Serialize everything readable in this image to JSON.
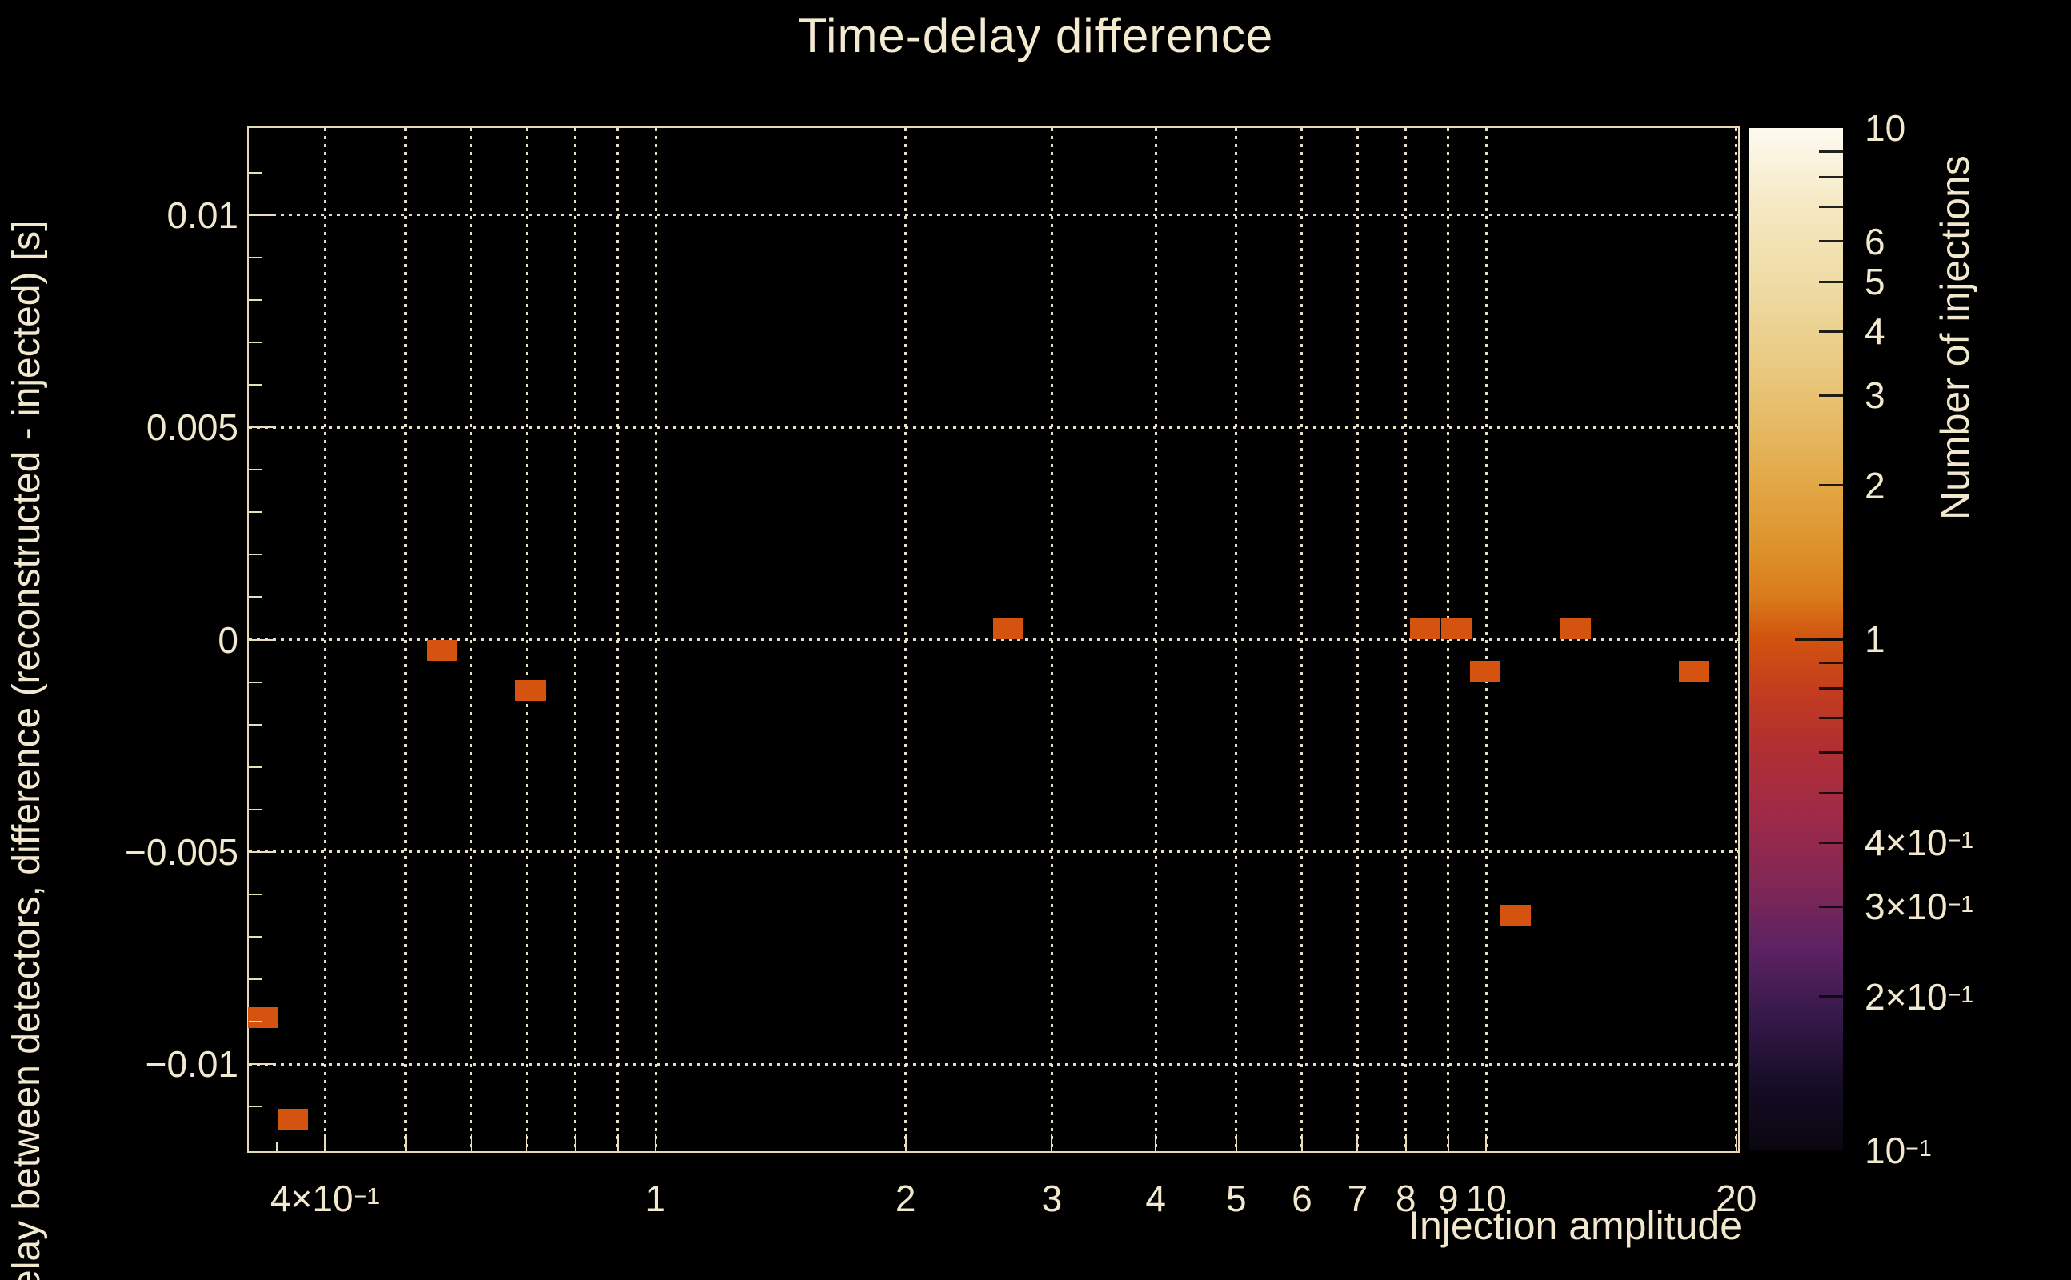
{
  "page": {
    "background": "#000000",
    "text_color": "#f2e8cd"
  },
  "chart_data": {
    "type": "heatmap",
    "title": "Time-delay difference",
    "xlabel": "Injection amplitude",
    "ylabel": "elay between detectors, difference (reconstructed - injected) [s]",
    "zlabel": "Number of injections",
    "x_scale": "log",
    "z_scale": "log",
    "grid": true,
    "xlim": [
      0.324,
      20.1
    ],
    "ylim": [
      -0.01205,
      0.01205
    ],
    "zlim": [
      0.1,
      10
    ],
    "x_tick_labels": [
      {
        "v": 0.4,
        "t": "4×10",
        "s": "−1"
      },
      {
        "v": 1,
        "t": "1"
      },
      {
        "v": 2,
        "t": "2"
      },
      {
        "v": 3,
        "t": "3"
      },
      {
        "v": 4,
        "t": "4"
      },
      {
        "v": 5,
        "t": "5"
      },
      {
        "v": 6,
        "t": "6"
      },
      {
        "v": 7,
        "t": "7"
      },
      {
        "v": 8,
        "t": "8"
      },
      {
        "v": 9,
        "t": "9"
      },
      {
        "v": 10,
        "t": "10"
      },
      {
        "v": 20,
        "t": "20"
      }
    ],
    "x_gridlines": [
      0.4,
      0.5,
      0.6,
      0.7,
      0.8,
      0.9,
      1,
      2,
      3,
      4,
      5,
      6,
      7,
      8,
      9,
      10,
      20
    ],
    "x_minor_ticks": [
      0.35
    ],
    "y_tick_labels": [
      {
        "v": 0.01,
        "t": "0.01"
      },
      {
        "v": 0.005,
        "t": "0.005"
      },
      {
        "v": 0,
        "t": "0"
      },
      {
        "v": -0.005,
        "t": "−0.005"
      },
      {
        "v": -0.01,
        "t": "−0.01"
      }
    ],
    "y_minor_step": 0.001,
    "bin_width_decades": 0.0366,
    "bin_height": 0.0005,
    "marker_color": "#d4530f",
    "bins": [
      {
        "x": 0.337,
        "y": -0.0089,
        "n": 1
      },
      {
        "x": 0.366,
        "y": -0.0113,
        "n": 1
      },
      {
        "x": 0.553,
        "y": -0.00025,
        "n": 1
      },
      {
        "x": 0.707,
        "y": -0.0012,
        "n": 1
      },
      {
        "x": 2.66,
        "y": 0.00025,
        "n": 1
      },
      {
        "x": 8.45,
        "y": 0.00025,
        "n": 1
      },
      {
        "x": 9.2,
        "y": 0.00025,
        "n": 1
      },
      {
        "x": 9.98,
        "y": -0.00075,
        "n": 1
      },
      {
        "x": 10.85,
        "y": -0.0065,
        "n": 1
      },
      {
        "x": 12.8,
        "y": 0.00025,
        "n": 1
      },
      {
        "x": 17.8,
        "y": -0.00075,
        "n": 1
      }
    ],
    "colorbar": {
      "tick_values": [
        9,
        8,
        7,
        6,
        5,
        4,
        3,
        2,
        1,
        0.9,
        0.8,
        0.7,
        0.6,
        0.5,
        0.4,
        0.3,
        0.2
      ],
      "major_tick_values": [
        1
      ],
      "labels": [
        {
          "v": 10,
          "t": "10"
        },
        {
          "v": 6,
          "t": "6"
        },
        {
          "v": 5,
          "t": "5"
        },
        {
          "v": 4,
          "t": "4"
        },
        {
          "v": 3,
          "t": "3"
        },
        {
          "v": 2,
          "t": "2"
        },
        {
          "v": 1,
          "t": "1"
        },
        {
          "v": 0.4,
          "t": "4×10",
          "s": "−1"
        },
        {
          "v": 0.3,
          "t": "3×10",
          "s": "−1"
        },
        {
          "v": 0.2,
          "t": "2×10",
          "s": "−1"
        },
        {
          "v": 0.1,
          "t": "10",
          "s": "−1"
        }
      ],
      "gradient": [
        [
          "0",
          "#fdfaf0"
        ],
        [
          "8",
          "#f5e8c1"
        ],
        [
          "16",
          "#eedaa2"
        ],
        [
          "24",
          "#e9c87e"
        ],
        [
          "30",
          "#e5b75f"
        ],
        [
          "36",
          "#e1a440"
        ],
        [
          "42",
          "#dd8f27"
        ],
        [
          "46",
          "#d9791b"
        ],
        [
          "50",
          "#d1530f"
        ],
        [
          "55",
          "#c33d1e"
        ],
        [
          "60",
          "#b23030"
        ],
        [
          "67",
          "#a02a47"
        ],
        [
          "74",
          "#812755"
        ],
        [
          "80",
          "#5e2263"
        ],
        [
          "87",
          "#35194a"
        ],
        [
          "94",
          "#150c24"
        ],
        [
          "100",
          "#090610"
        ]
      ]
    }
  }
}
